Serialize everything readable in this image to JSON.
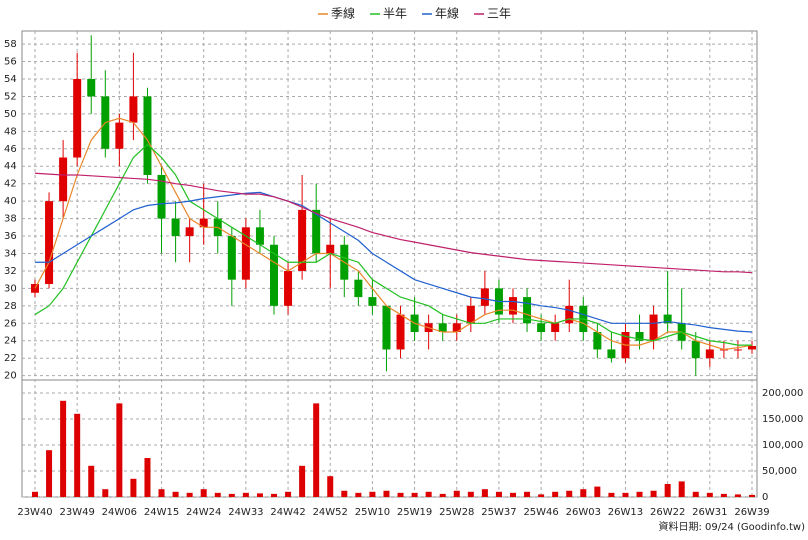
{
  "chart_data": [
    {
      "type": "candlestick",
      "categories": [
        "23W40",
        null,
        null,
        "23W49",
        null,
        null,
        "24W06",
        null,
        null,
        "24W15",
        null,
        null,
        "24W24",
        null,
        null,
        "24W33",
        null,
        null,
        "24W42",
        null,
        null,
        "24W52",
        null,
        null,
        "25W10",
        null,
        null,
        "25W19",
        null,
        null,
        "25W28",
        null,
        null,
        "25W37",
        null,
        null,
        "25W46",
        null,
        null,
        "26W03",
        null,
        null,
        "26W13",
        null,
        null,
        "26W22",
        null,
        null,
        "26W31",
        null,
        null,
        "26W39"
      ],
      "open": [
        29.5,
        30.5,
        40,
        45,
        54,
        52,
        46,
        49,
        52,
        43,
        38,
        36,
        37,
        38,
        36,
        31,
        37,
        35,
        28,
        32,
        39,
        34,
        35,
        31,
        29,
        28,
        23,
        27,
        25,
        26,
        25,
        26,
        28,
        30,
        27,
        29,
        26,
        25,
        26,
        28,
        25,
        23,
        22,
        25,
        24,
        27,
        26,
        24,
        22,
        23,
        23,
        23
      ],
      "high": [
        31,
        41,
        47,
        57,
        59,
        55,
        50,
        57,
        53,
        44,
        40,
        38,
        42,
        40,
        37,
        38,
        39,
        36,
        33,
        43,
        42,
        38,
        36,
        32,
        31,
        28,
        28,
        29,
        27,
        27,
        27,
        29,
        32,
        31,
        30,
        30,
        27,
        27,
        31,
        29,
        26,
        25,
        26,
        27,
        28,
        32,
        30,
        25,
        24,
        24,
        24,
        24
      ],
      "low": [
        29,
        30,
        38,
        44,
        50,
        45,
        44,
        47,
        42,
        34,
        33,
        33,
        35,
        34,
        28,
        30,
        34,
        27,
        27,
        31,
        33,
        30,
        29,
        28,
        27,
        20.5,
        22,
        24,
        23,
        24,
        24,
        25,
        27,
        26,
        26,
        25,
        24,
        24,
        25,
        24,
        22,
        21.5,
        21.5,
        23,
        23,
        25,
        23,
        20,
        21,
        22,
        22,
        22.5
      ],
      "close": [
        30.5,
        40,
        45,
        54,
        52,
        46,
        49,
        52,
        43,
        38,
        36,
        37,
        38,
        36,
        31,
        37,
        35,
        28,
        32,
        39,
        34,
        35,
        31,
        29,
        28,
        23,
        27,
        25,
        26,
        25,
        26,
        28,
        30,
        27,
        29,
        26,
        25,
        26,
        28,
        25,
        23,
        22,
        25,
        24,
        27,
        26,
        24,
        22,
        23,
        23,
        23,
        23.4
      ],
      "up_color": "#e00000",
      "down_color": "#00a000",
      "series": [
        {
          "name": "季線",
          "color": "#e8872a",
          "values": [
            30,
            33,
            38,
            43,
            47,
            49,
            49.5,
            49,
            47,
            44,
            41,
            38,
            37,
            37,
            36,
            35,
            34,
            33,
            32,
            33,
            34,
            34,
            33,
            32,
            30,
            28,
            27,
            26,
            25.5,
            25,
            25,
            26,
            27,
            27.5,
            27.5,
            27,
            26.5,
            26,
            26.5,
            26,
            25,
            24,
            23.5,
            23.5,
            24,
            25,
            25,
            24,
            23.5,
            23,
            23.2,
            23.5
          ]
        },
        {
          "name": "半年",
          "color": "#22c022",
          "values": [
            27,
            28,
            30,
            33,
            36,
            39,
            42,
            45,
            46.5,
            45,
            43,
            40,
            39,
            38,
            37,
            36,
            35,
            34,
            33,
            33,
            33,
            34,
            33.5,
            33,
            31,
            30,
            29,
            28.5,
            28,
            27,
            26.5,
            26,
            26,
            26.5,
            26.5,
            26.5,
            26.2,
            26,
            26.5,
            26.5,
            26,
            25,
            24.5,
            24.2,
            24,
            24.5,
            25,
            24.5,
            24,
            23.8,
            23.5,
            23.5
          ]
        },
        {
          "name": "年線",
          "color": "#2060d0",
          "values": [
            33,
            33,
            34,
            35,
            36,
            37,
            38,
            39,
            39.5,
            39.7,
            39.8,
            40,
            40.3,
            40.5,
            40.7,
            40.9,
            41,
            40.5,
            40,
            39.5,
            38.5,
            37.5,
            36.5,
            35.5,
            34,
            33,
            32,
            31,
            30.5,
            30,
            29.5,
            29,
            28.8,
            28.5,
            28.5,
            28.3,
            28,
            27.8,
            27.5,
            27,
            26.5,
            26,
            26,
            26,
            26,
            26.2,
            26,
            25.8,
            25.5,
            25.3,
            25.1,
            25
          ]
        },
        {
          "name": "三年",
          "color": "#c0206a",
          "values": [
            43.2,
            43.1,
            43,
            43,
            42.9,
            42.8,
            42.7,
            42.6,
            42.5,
            42.3,
            42,
            41.8,
            41.5,
            41.2,
            41,
            40.8,
            40.8,
            40.5,
            40,
            39.3,
            38.6,
            38,
            37.5,
            37,
            36.4,
            36,
            35.6,
            35.3,
            35,
            34.7,
            34.4,
            34.1,
            33.9,
            33.7,
            33.5,
            33.3,
            33.2,
            33.1,
            33,
            32.9,
            32.8,
            32.7,
            32.6,
            32.5,
            32.4,
            32.3,
            32.2,
            32.1,
            32,
            31.9,
            31.9,
            31.8
          ]
        }
      ],
      "ylim": [
        19.5,
        59.5
      ],
      "yticks": [
        20,
        22,
        24,
        26,
        28,
        30,
        32,
        34,
        36,
        38,
        40,
        42,
        44,
        46,
        48,
        50,
        52,
        54,
        56,
        58
      ],
      "grid": true,
      "legend": "top"
    },
    {
      "type": "bar",
      "color": "#dd0000",
      "values": [
        10000,
        90000,
        185000,
        160000,
        60000,
        15000,
        180000,
        35000,
        75000,
        15000,
        10000,
        8000,
        15000,
        8000,
        6000,
        8000,
        7000,
        6000,
        10000,
        60000,
        180000,
        40000,
        12000,
        8000,
        10000,
        12000,
        8000,
        8000,
        10000,
        6000,
        12000,
        10000,
        15000,
        10000,
        8000,
        10000,
        5000,
        10000,
        12000,
        15000,
        20000,
        8000,
        8000,
        10000,
        12000,
        25000,
        30000,
        10000,
        8000,
        6000,
        5000,
        4000
      ],
      "ylim": [
        0,
        225000
      ],
      "yticks": [
        0,
        {
          "value": 50000,
          "label": "50,000"
        },
        {
          "value": 100000,
          "label": "100,000"
        },
        {
          "value": 150000,
          "label": "150,000"
        },
        {
          "value": 200000,
          "label": "200,000"
        }
      ],
      "grid": true
    }
  ],
  "source": "資料日期: 09/24 (Goodinfo.tw)"
}
